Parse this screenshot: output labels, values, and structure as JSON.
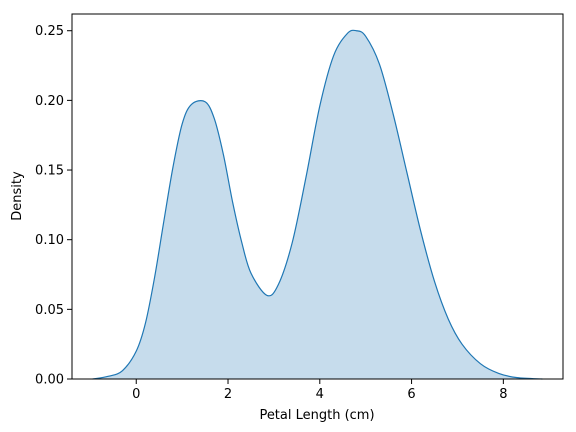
{
  "chart_data": {
    "type": "area",
    "subtype": "kde",
    "title": "",
    "xlabel": "Petal Length (cm)",
    "ylabel": "Density",
    "xlim": [
      -1.4,
      9.3
    ],
    "ylim": [
      0,
      0.262
    ],
    "xticks": [
      0,
      2,
      4,
      6,
      8
    ],
    "yticks": [
      0.0,
      0.05,
      0.1,
      0.15,
      0.2,
      0.25
    ],
    "xtick_labels": [
      "0",
      "2",
      "4",
      "6",
      "8"
    ],
    "ytick_labels": [
      "0.00",
      "0.05",
      "0.10",
      "0.15",
      "0.20",
      "0.25"
    ],
    "grid": false,
    "legend": null,
    "colors": {
      "line": "#1f77b4",
      "fill": "#c6dcec"
    },
    "series": [
      {
        "x": [
          -0.95,
          -0.6,
          -0.3,
          0.0,
          0.2,
          0.4,
          0.6,
          0.8,
          1.0,
          1.2,
          1.5,
          1.7,
          1.9,
          2.1,
          2.3,
          2.5,
          2.85,
          3.1,
          3.4,
          3.7,
          4.0,
          4.3,
          4.6,
          4.8,
          5.0,
          5.3,
          5.6,
          5.9,
          6.2,
          6.5,
          6.8,
          7.1,
          7.5,
          7.9,
          8.3,
          8.85
        ],
        "y": [
          0.0,
          0.002,
          0.006,
          0.02,
          0.04,
          0.073,
          0.113,
          0.152,
          0.183,
          0.197,
          0.199,
          0.187,
          0.161,
          0.127,
          0.098,
          0.076,
          0.06,
          0.068,
          0.098,
          0.145,
          0.196,
          0.232,
          0.248,
          0.25,
          0.246,
          0.226,
          0.19,
          0.148,
          0.106,
          0.07,
          0.043,
          0.025,
          0.011,
          0.004,
          0.001,
          0.0
        ]
      }
    ]
  }
}
